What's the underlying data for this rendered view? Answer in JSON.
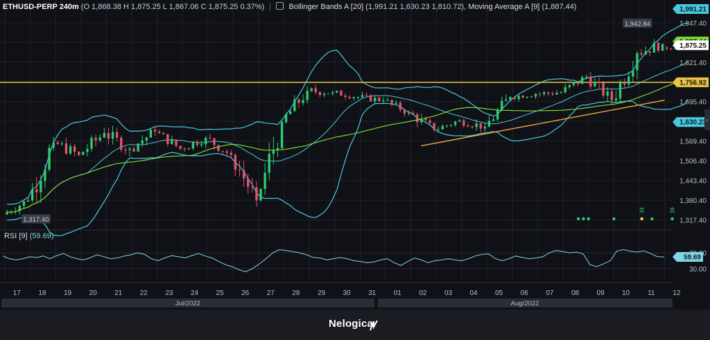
{
  "header": {
    "symbol": "ETHUSD-PERP 240m",
    "ohlc": "(O 1,868.38 H 1,875.25 L 1,867.06 C 1,875.25  0.37%)",
    "bb_name": "Bollinger Bands A [20]",
    "bb_values": "(1,991.21  1,630.23 1,810.72),",
    "ma_name": "Moving Average A [9]",
    "ma_values": "(1,887.44)"
  },
  "rsi_header": {
    "name": "RSI [9]",
    "value": "(59.69)"
  },
  "brand": "Nelogica",
  "colors": {
    "background": "#101116",
    "up": "#2ecc71",
    "down": "#e0566d",
    "bollinger": "#49c8e0",
    "moving_average": "#7ad83a",
    "horizontal_line": "#e8c547",
    "trendline": "#e0a23a",
    "rsi": "#7fd6e6",
    "grid": "#1f2229"
  },
  "chart_data": {
    "type": "line",
    "title": "ETHUSD-PERP 240m",
    "price_axis": {
      "ticks": [
        "1,947.40",
        "1,884.40",
        "1,821.40",
        "1,758.40",
        "1,695.40",
        "1,632.40",
        "1,569.40",
        "1,506.40",
        "1,443.40",
        "1,380.40",
        "1,317.40"
      ],
      "tick_values": [
        1947.4,
        1884.4,
        1821.4,
        1758.4,
        1695.4,
        1632.4,
        1569.4,
        1506.4,
        1443.4,
        1380.4,
        1317.4
      ],
      "range": [
        1290,
        2020
      ]
    },
    "date_axis": {
      "ticks": [
        "17",
        "18",
        "19",
        "20",
        "21",
        "22",
        "23",
        "24",
        "25",
        "26",
        "27",
        "28",
        "29",
        "30",
        "31",
        "01",
        "02",
        "03",
        "04",
        "05",
        "06",
        "07",
        "08",
        "09",
        "10",
        "11",
        "12"
      ],
      "months": [
        "Jul/2022",
        "Aug/2022"
      ]
    },
    "badges": [
      {
        "label": "1,991.21",
        "value": 1991.21,
        "bg": "#49c8e0",
        "fg": "#0b1a1e"
      },
      {
        "label": "1,887.44",
        "value": 1887.44,
        "bg": "#7ad83a",
        "fg": "#0d1a08"
      },
      {
        "label": "1,875.25",
        "value": 1875.25,
        "bg": "#ffffff",
        "fg": "#111111"
      },
      {
        "label": "1,756.92",
        "value": 1756.92,
        "bg": "#e8c547",
        "fg": "#1a1506"
      },
      {
        "label": "1,630.23",
        "value": 1630.23,
        "bg": "#49c8e0",
        "fg": "#0b1a1e"
      }
    ],
    "annotations": [
      {
        "label": "1,942.84",
        "value": 1942.84,
        "day": 24.4
      },
      {
        "label": "1,317.40",
        "value": 1317.4,
        "day": 0.7
      }
    ],
    "horizontal_line": 1756.92,
    "trendline": [
      {
        "day": 15.9,
        "price": 1554
      },
      {
        "day": 25.5,
        "price": 1700
      }
    ],
    "candles_daily": [
      {
        "day": "17",
        "open": 1335,
        "high": 1395,
        "low": 1317,
        "close": 1380
      },
      {
        "day": "18",
        "open": 1380,
        "high": 1600,
        "low": 1372,
        "close": 1565
      },
      {
        "day": "19",
        "open": 1565,
        "high": 1605,
        "low": 1500,
        "close": 1525
      },
      {
        "day": "20",
        "open": 1525,
        "high": 1615,
        "low": 1490,
        "close": 1595
      },
      {
        "day": "21",
        "open": 1595,
        "high": 1620,
        "low": 1500,
        "close": 1545
      },
      {
        "day": "22",
        "open": 1545,
        "high": 1640,
        "low": 1535,
        "close": 1600
      },
      {
        "day": "23",
        "open": 1600,
        "high": 1605,
        "low": 1520,
        "close": 1545
      },
      {
        "day": "24",
        "open": 1545,
        "high": 1620,
        "low": 1535,
        "close": 1580
      },
      {
        "day": "25",
        "open": 1580,
        "high": 1600,
        "low": 1500,
        "close": 1525
      },
      {
        "day": "26",
        "open": 1525,
        "high": 1530,
        "low": 1360,
        "close": 1380
      },
      {
        "day": "27",
        "open": 1380,
        "high": 1640,
        "low": 1375,
        "close": 1630
      },
      {
        "day": "28",
        "open": 1630,
        "high": 1760,
        "low": 1620,
        "close": 1730
      },
      {
        "day": "29",
        "open": 1730,
        "high": 1765,
        "low": 1690,
        "close": 1725
      },
      {
        "day": "30",
        "open": 1725,
        "high": 1745,
        "low": 1690,
        "close": 1710
      },
      {
        "day": "31",
        "open": 1710,
        "high": 1730,
        "low": 1670,
        "close": 1700
      },
      {
        "day": "01",
        "open": 1700,
        "high": 1710,
        "low": 1640,
        "close": 1660
      },
      {
        "day": "02",
        "open": 1660,
        "high": 1675,
        "low": 1580,
        "close": 1605
      },
      {
        "day": "03",
        "open": 1605,
        "high": 1655,
        "low": 1595,
        "close": 1635
      },
      {
        "day": "04",
        "open": 1635,
        "high": 1665,
        "low": 1590,
        "close": 1615
      },
      {
        "day": "05",
        "open": 1615,
        "high": 1730,
        "low": 1605,
        "close": 1710
      },
      {
        "day": "06",
        "open": 1710,
        "high": 1740,
        "low": 1690,
        "close": 1720
      },
      {
        "day": "07",
        "open": 1720,
        "high": 1740,
        "low": 1680,
        "close": 1725
      },
      {
        "day": "08",
        "open": 1725,
        "high": 1800,
        "low": 1715,
        "close": 1775
      },
      {
        "day": "09",
        "open": 1775,
        "high": 1790,
        "low": 1680,
        "close": 1700
      },
      {
        "day": "10",
        "open": 1700,
        "high": 1860,
        "low": 1690,
        "close": 1850
      },
      {
        "day": "11",
        "open": 1850,
        "high": 1942.84,
        "low": 1840,
        "close": 1880
      },
      {
        "day": "12",
        "open": 1868.38,
        "high": 1905,
        "low": 1855,
        "close": 1875.25
      }
    ],
    "rsi": {
      "name": "RSI [9]",
      "ticks": [
        "70.00",
        "30.00"
      ],
      "tick_values": [
        70,
        30
      ],
      "range": [
        0,
        100
      ],
      "last": 59.69,
      "values": [
        62,
        55,
        52,
        55,
        60,
        58,
        62,
        55,
        63,
        68,
        60,
        55,
        52,
        58,
        65,
        60,
        55,
        57,
        62,
        65,
        70,
        66,
        55,
        50,
        57,
        63,
        60,
        57,
        63,
        68,
        62,
        57,
        48,
        40,
        35,
        27,
        22,
        30,
        42,
        55,
        70,
        78,
        76,
        73,
        70,
        65,
        58,
        57,
        52,
        55,
        58,
        55,
        50,
        48,
        45,
        47,
        52,
        55,
        45,
        38,
        48,
        57,
        52,
        45,
        50,
        52,
        55,
        52,
        50,
        55,
        62,
        66,
        67,
        55,
        50,
        55,
        62,
        58,
        55,
        57,
        60,
        70,
        76,
        73,
        70,
        72,
        67,
        40,
        35,
        42,
        50,
        75,
        78,
        74,
        72,
        75,
        68,
        60,
        59.69
      ]
    },
    "grid": true
  }
}
